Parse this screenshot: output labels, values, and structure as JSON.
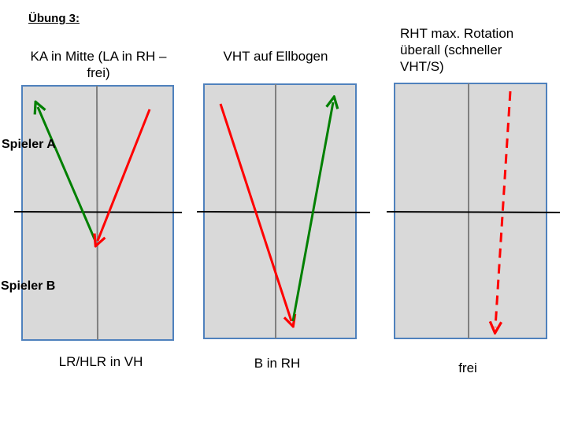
{
  "title": "Übung 3:",
  "players": {
    "a": "Spieler A",
    "b": "Spieler B"
  },
  "panels": [
    {
      "top_caption": "KA in Mitte (LA in RH –\nfrei)",
      "bottom_caption": "LR/HLR in VH"
    },
    {
      "top_caption": "VHT auf Ellbogen",
      "bottom_caption": "B in RH"
    },
    {
      "top_caption": "RHT max. Rotation\nüberall (schneller\nVHT/S)",
      "bottom_caption": "frei"
    }
  ],
  "colors": {
    "table_fill": "#d9d9d9",
    "table_border": "#4f81bd",
    "center_line": "#808080",
    "net_line": "#000000",
    "red_arrow": "#ff0000",
    "green_arrow": "#008000"
  }
}
